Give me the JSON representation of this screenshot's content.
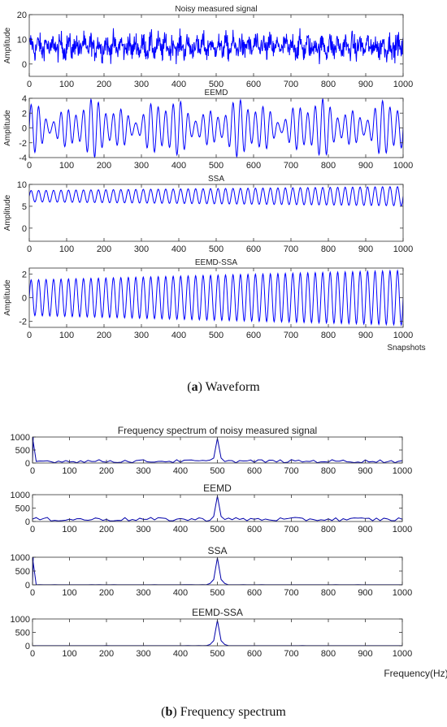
{
  "caption_a": {
    "tag": "a",
    "text": "Waveform"
  },
  "caption_b": {
    "tag": "b",
    "text": "Frequency spectrum"
  },
  "chart_data": [
    {
      "type": "line",
      "title": "Noisy measured signal",
      "ylabel": "Amplitude",
      "xlabel": "",
      "xlim": [
        0,
        1000
      ],
      "ylim": [
        -5,
        20
      ],
      "xticks": [
        0,
        100,
        200,
        300,
        400,
        500,
        600,
        700,
        800,
        900,
        1000
      ],
      "yticks": [
        0,
        10,
        20
      ],
      "series": [
        {
          "kind": "noisy",
          "mean": 7,
          "spread": 3.2,
          "periods": 50,
          "amp": 2.0,
          "points": 1000
        }
      ],
      "color": "#0000ff"
    },
    {
      "type": "line",
      "title": "EEMD",
      "ylabel": "Amplitude",
      "xlabel": "",
      "xlim": [
        0,
        1000
      ],
      "ylim": [
        -4,
        4
      ],
      "xticks": [
        0,
        100,
        200,
        300,
        400,
        500,
        600,
        700,
        800,
        900,
        1000
      ],
      "yticks": [
        -4,
        -2,
        0,
        2,
        4
      ],
      "series": [
        {
          "kind": "modulated",
          "mean": 0,
          "periods": 50,
          "amp_min": 0.6,
          "amp_max": 4.0,
          "points": 1000
        }
      ],
      "color": "#0000ff"
    },
    {
      "type": "line",
      "title": "SSA",
      "ylabel": "Amplitude",
      "xlabel": "",
      "xlim": [
        0,
        1000
      ],
      "ylim": [
        -3,
        10
      ],
      "xticks": [
        0,
        100,
        200,
        300,
        400,
        500,
        600,
        700,
        800,
        900,
        1000
      ],
      "yticks": [
        0,
        5,
        10
      ],
      "series": [
        {
          "kind": "sine",
          "mean": 7.3,
          "amp_start": 1.3,
          "amp_end": 2.2,
          "periods": 50,
          "points": 1000
        }
      ],
      "color": "#0000ff"
    },
    {
      "type": "line",
      "title": "EEMD-SSA",
      "ylabel": "Amplitude",
      "xlabel": "Snapshots",
      "xlim": [
        0,
        1000
      ],
      "ylim": [
        -2.5,
        2.5
      ],
      "xticks": [
        0,
        100,
        200,
        300,
        400,
        500,
        600,
        700,
        800,
        900,
        1000
      ],
      "yticks": [
        -2,
        0,
        2
      ],
      "series": [
        {
          "kind": "sine",
          "mean": 0,
          "amp_start": 1.5,
          "amp_end": 2.3,
          "periods": 50,
          "points": 1000
        }
      ],
      "color": "#0000ff"
    },
    {
      "type": "line",
      "title": "Frequency spectrum of noisy measured signal",
      "ylabel": "",
      "xlabel": "",
      "xlim": [
        0,
        1000
      ],
      "ylim": [
        0,
        1000
      ],
      "xticks": [
        0,
        100,
        200,
        300,
        400,
        500,
        600,
        700,
        800,
        900,
        1000
      ],
      "yticks": [
        0,
        500,
        1000
      ],
      "series": [
        {
          "kind": "spectrum",
          "dc": 1000,
          "peak_x": 500,
          "peak_y": 950,
          "floor": 70,
          "floor_var": 60,
          "step": 10
        }
      ],
      "color": "#0000aa"
    },
    {
      "type": "line",
      "title": "EEMD",
      "ylabel": "",
      "xlabel": "",
      "xlim": [
        0,
        1000
      ],
      "ylim": [
        0,
        1000
      ],
      "xticks": [
        0,
        100,
        200,
        300,
        400,
        500,
        600,
        700,
        800,
        900,
        1000
      ],
      "yticks": [
        0,
        500,
        1000
      ],
      "series": [
        {
          "kind": "spectrum",
          "dc": 0,
          "peak_x": 500,
          "peak_y": 950,
          "floor": 80,
          "floor_var": 70,
          "step": 10
        }
      ],
      "color": "#0000aa"
    },
    {
      "type": "line",
      "title": "SSA",
      "ylabel": "",
      "xlabel": "",
      "xlim": [
        0,
        1000
      ],
      "ylim": [
        0,
        1000
      ],
      "xticks": [
        0,
        100,
        200,
        300,
        400,
        500,
        600,
        700,
        800,
        900,
        1000
      ],
      "yticks": [
        0,
        500,
        1000
      ],
      "series": [
        {
          "kind": "spectrum",
          "dc": 1000,
          "peak_x": 500,
          "peak_y": 980,
          "floor": 4,
          "floor_var": 2,
          "step": 10
        }
      ],
      "color": "#0000aa"
    },
    {
      "type": "line",
      "title": "EEMD-SSA",
      "ylabel": "",
      "xlabel": "Frequency(Hz)",
      "xlim": [
        0,
        1000
      ],
      "ylim": [
        0,
        1000
      ],
      "xticks": [
        0,
        100,
        200,
        300,
        400,
        500,
        600,
        700,
        800,
        900,
        1000
      ],
      "yticks": [
        0,
        500,
        1000
      ],
      "series": [
        {
          "kind": "spectrum",
          "dc": 0,
          "peak_x": 500,
          "peak_y": 950,
          "floor": 4,
          "floor_var": 2,
          "step": 10
        }
      ],
      "color": "#0000aa"
    }
  ]
}
